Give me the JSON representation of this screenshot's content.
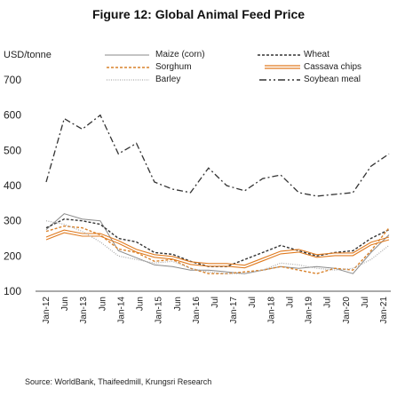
{
  "header": {
    "title": "Figure 12: Global Animal Feed Price",
    "unit_label": "USD/tonne"
  },
  "footer": {
    "source": "Source: WorldBank, Thaifeedmill, Krungsri Research"
  },
  "chart_data": {
    "type": "line",
    "title": "Figure 12: Global Animal Feed Price",
    "ylabel": "USD/tonne",
    "xlabel": "",
    "ylim": [
      100,
      700
    ],
    "yticks": [
      100,
      200,
      300,
      400,
      500,
      600,
      700
    ],
    "legend_position": "top",
    "x_tick_labels": [
      "Jan-12",
      "Jun",
      "Jan-13",
      "Jun",
      "Jan-14",
      "Jun",
      "Jan-15",
      "Jun",
      "Jan-16",
      "Jul",
      "Jan-17",
      "Jul",
      "Jan-18",
      "Jul",
      "Jan-19",
      "Jul",
      "Jan-20",
      "Jul",
      "Jan-21"
    ],
    "x": [
      "2012-01",
      "2012-06",
      "2013-01",
      "2013-06",
      "2014-01",
      "2014-06",
      "2015-01",
      "2015-06",
      "2016-01",
      "2016-07",
      "2017-01",
      "2017-07",
      "2018-01",
      "2018-07",
      "2019-01",
      "2019-07",
      "2020-01",
      "2020-07",
      "2021-01",
      "2021-04"
    ],
    "series": [
      {
        "name": "Maize (corn)",
        "color": "#8a8a8a",
        "style": "thin-solid",
        "values": [
          275,
          320,
          305,
          300,
          215,
          195,
          175,
          170,
          160,
          160,
          155,
          150,
          160,
          170,
          165,
          170,
          165,
          150,
          210,
          260
        ]
      },
      {
        "name": "Wheat",
        "color": "#333333",
        "style": "dashed",
        "values": [
          280,
          305,
          300,
          290,
          250,
          240,
          210,
          205,
          185,
          170,
          170,
          190,
          210,
          230,
          215,
          200,
          210,
          215,
          250,
          275
        ]
      },
      {
        "name": "Sorghum",
        "color": "#d9822b",
        "style": "dashed",
        "values": [
          270,
          285,
          280,
          260,
          220,
          210,
          185,
          190,
          165,
          150,
          150,
          155,
          160,
          170,
          160,
          150,
          165,
          160,
          215,
          280
        ]
      },
      {
        "name": "Cassava chips",
        "color": "#e07b20",
        "style": "double",
        "values": [
          250,
          270,
          260,
          260,
          240,
          215,
          200,
          195,
          180,
          175,
          175,
          170,
          190,
          210,
          215,
          200,
          205,
          205,
          235,
          250
        ]
      },
      {
        "name": "Barley",
        "color": "#aaaaaa",
        "style": "dotted",
        "values": [
          300,
          290,
          270,
          240,
          200,
          190,
          180,
          185,
          165,
          155,
          150,
          150,
          160,
          180,
          175,
          165,
          160,
          165,
          190,
          230
        ]
      },
      {
        "name": "Soybean meal",
        "color": "#333333",
        "style": "dash-dot",
        "values": [
          410,
          590,
          560,
          600,
          490,
          520,
          410,
          390,
          380,
          450,
          400,
          385,
          420,
          430,
          380,
          370,
          375,
          380,
          455,
          490
        ]
      }
    ]
  }
}
